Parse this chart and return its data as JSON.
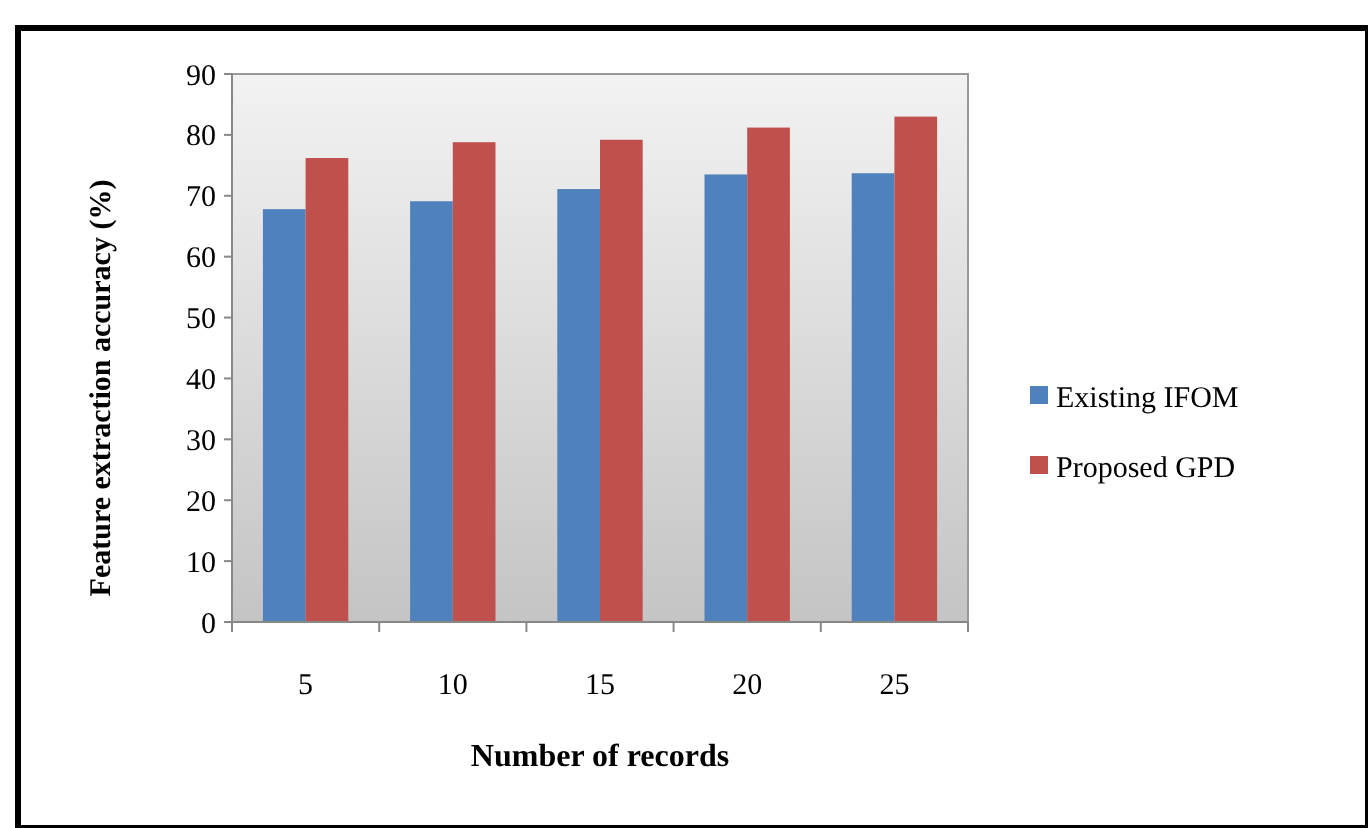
{
  "chart_data": {
    "type": "bar",
    "xlabel": "Number of records",
    "ylabel": "Feature extraction accuracy (%)",
    "categories": [
      "5",
      "10",
      "15",
      "20",
      "25"
    ],
    "series": [
      {
        "name": "Existing IFOM",
        "color": "#4f81bd",
        "values": [
          67.8,
          69.1,
          71.1,
          73.5,
          73.7
        ]
      },
      {
        "name": "Proposed GPD",
        "color": "#c0504d",
        "values": [
          76.2,
          78.8,
          79.2,
          81.2,
          83
        ]
      }
    ],
    "ylim": [
      0,
      90
    ],
    "yticks": [
      0,
      10,
      20,
      30,
      40,
      50,
      60,
      70,
      80,
      90
    ],
    "grid": false,
    "legend": "right"
  }
}
